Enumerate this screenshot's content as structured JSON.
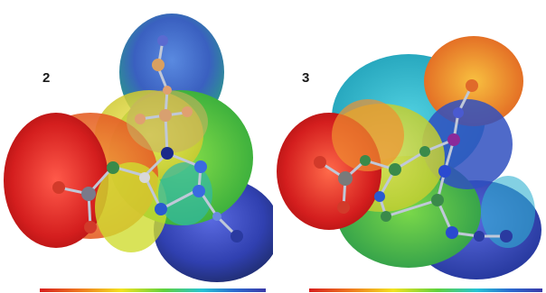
{
  "panels": [
    {
      "label": "2"
    },
    {
      "label": "3"
    }
  ],
  "colors": {
    "negative": "#d71e1e",
    "intermediate": "#f2e21e",
    "neutral": "#5fd23c",
    "positive": "#3a3aa8",
    "atom_oxygen": "#d23a2a",
    "atom_carbon": "#3a8a4a",
    "atom_nitrogen": "#2a4ad0",
    "atom_boron": "#d9a060"
  }
}
